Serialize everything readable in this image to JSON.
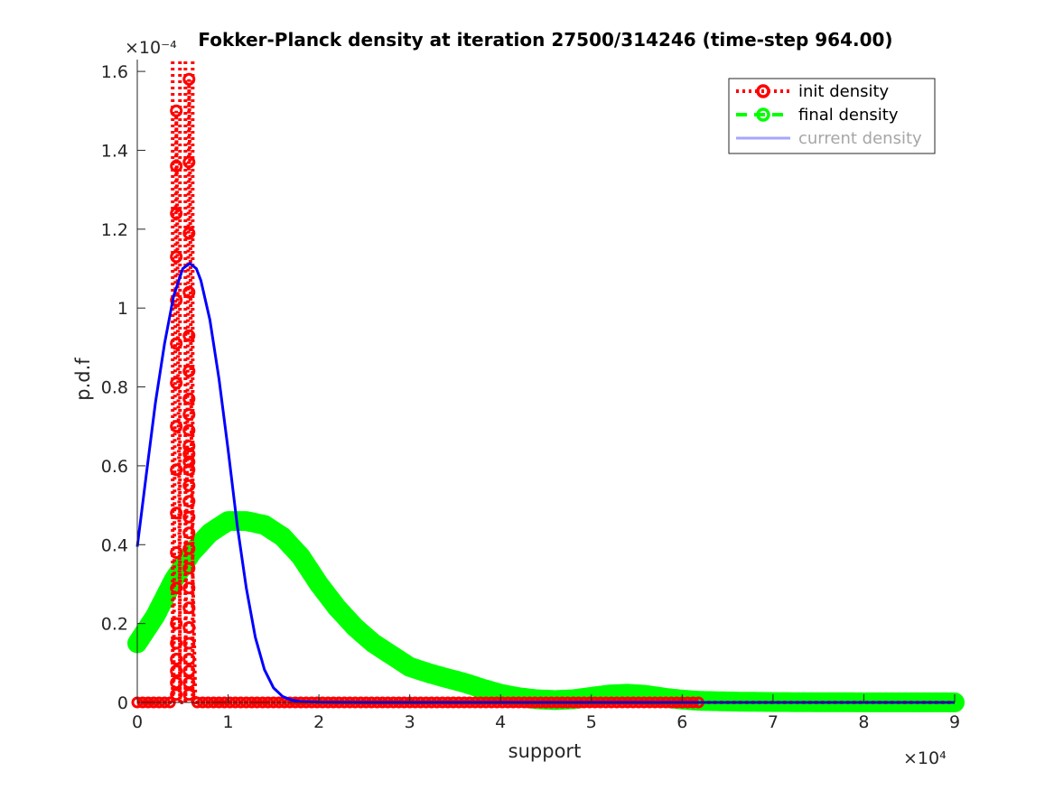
{
  "chart_data": {
    "type": "line",
    "title": "Fokker-Planck density at iteration 27500/314246 (time-step 964.00)",
    "xlabel": "support",
    "ylabel": "p.d.f",
    "x_exponent_label": "×10⁴",
    "y_exponent_label": "×10⁻⁴",
    "xlim": [
      0,
      90000
    ],
    "ylim": [
      0,
      1.63
    ],
    "x_ticks": [
      0,
      10000,
      20000,
      30000,
      40000,
      50000,
      60000,
      70000,
      80000,
      90000
    ],
    "x_tick_labels": [
      "0",
      "1",
      "2",
      "3",
      "4",
      "5",
      "6",
      "7",
      "8",
      "9"
    ],
    "y_ticks": [
      0,
      0.2,
      0.4,
      0.6,
      0.8,
      1.0,
      1.2,
      1.4,
      1.6
    ],
    "y_tick_labels": [
      "0",
      "0.2",
      "0.4",
      "0.6",
      "0.8",
      "1",
      "1.2",
      "1.4",
      "1.6"
    ],
    "legend_position": "top-right",
    "series": [
      {
        "name": "init density",
        "color": "#ff0000",
        "style": "dotted-with-circle-markers",
        "x": [
          0,
          4000,
          4200,
          4300,
          4400,
          4500,
          4600,
          4700,
          5300,
          5400,
          5500,
          5600,
          5700,
          5800,
          5900,
          6000,
          6100,
          6400,
          62000,
          90000
        ],
        "y": [
          0.0,
          0.0,
          1.02,
          1.5,
          1.24,
          0.81,
          0.59,
          0.0,
          0.0,
          0.43,
          0.66,
          1.04,
          1.58,
          1.37,
          0.93,
          0.56,
          0.34,
          0.0,
          0.0,
          0.0
        ]
      },
      {
        "name": "final density",
        "color": "#00ff00",
        "style": "dashed-with-circle-markers",
        "x": [
          0,
          2000,
          4000,
          6000,
          8000,
          10000,
          12000,
          14000,
          16000,
          18000,
          20000,
          22000,
          24000,
          26000,
          28000,
          30000,
          32000,
          34000,
          36000,
          38000,
          40000,
          42000,
          44000,
          46000,
          48000,
          50000,
          52000,
          54000,
          56000,
          58000,
          60000,
          62000,
          64000,
          66000,
          70000,
          75000,
          80000,
          85000,
          90000
        ],
        "y": [
          0.15,
          0.22,
          0.31,
          0.38,
          0.43,
          0.46,
          0.46,
          0.45,
          0.42,
          0.37,
          0.3,
          0.24,
          0.19,
          0.15,
          0.12,
          0.09,
          0.075,
          0.062,
          0.05,
          0.035,
          0.022,
          0.013,
          0.008,
          0.006,
          0.008,
          0.014,
          0.02,
          0.022,
          0.019,
          0.012,
          0.007,
          0.004,
          0.003,
          0.002,
          0.001,
          0.0005,
          0.0003,
          0.0002,
          0.0001
        ]
      },
      {
        "name": "current density",
        "color": "#0000ff",
        "style": "solid",
        "x": [
          0,
          1000,
          2000,
          3000,
          4000,
          5000,
          5800,
          6500,
          7000,
          8000,
          9000,
          10000,
          11000,
          12000,
          13000,
          14000,
          15000,
          16000,
          17000,
          18000,
          20000,
          25000,
          30000,
          40000,
          50000,
          60000,
          70000,
          80000,
          90000
        ],
        "y": [
          0.395,
          0.58,
          0.76,
          0.91,
          1.03,
          1.1,
          1.113,
          1.1,
          1.07,
          0.97,
          0.82,
          0.64,
          0.45,
          0.29,
          0.165,
          0.083,
          0.037,
          0.015,
          0.006,
          0.002,
          0.0005,
          0.0001,
          0.0,
          0.0,
          0.0,
          0.0,
          0.0,
          0.0,
          0.0
        ]
      }
    ]
  }
}
